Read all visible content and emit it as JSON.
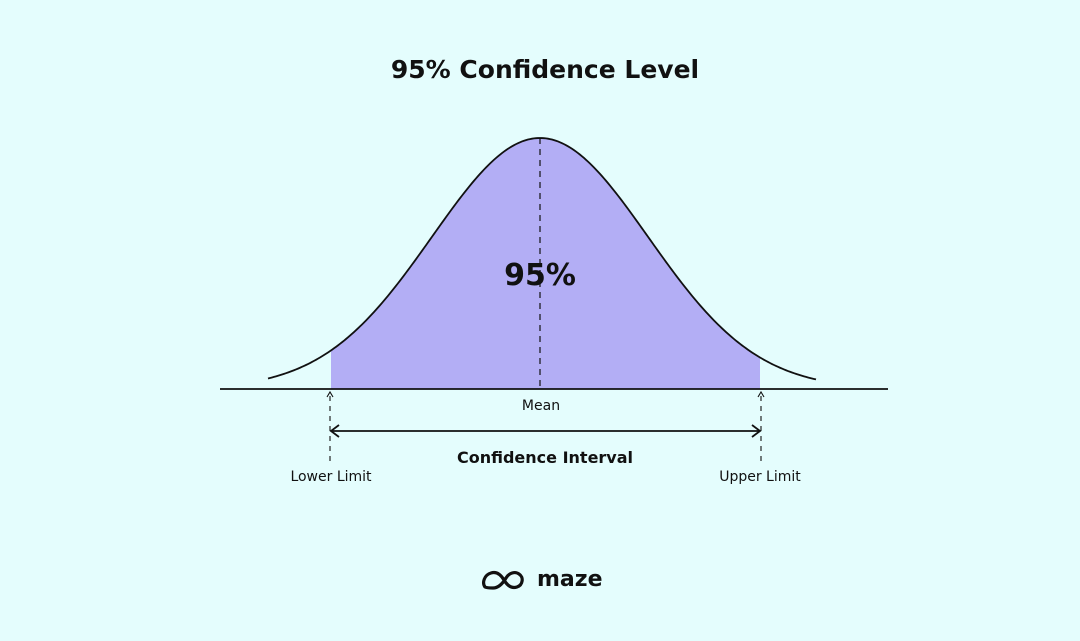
{
  "diagram": {
    "title": "95% Confidence Level",
    "center_value": "95%",
    "mean_label": "Mean",
    "interval_label": "Confidence Interval",
    "lower_label": "Lower Limit",
    "upper_label": "Upper Limit",
    "confidence_level": 0.95
  },
  "brand": {
    "name": "maze",
    "logo_icon": "maze-logo-icon"
  },
  "colors": {
    "background": "#e4fdfd",
    "fill": "#b3aef5",
    "ink": "#111111"
  }
}
